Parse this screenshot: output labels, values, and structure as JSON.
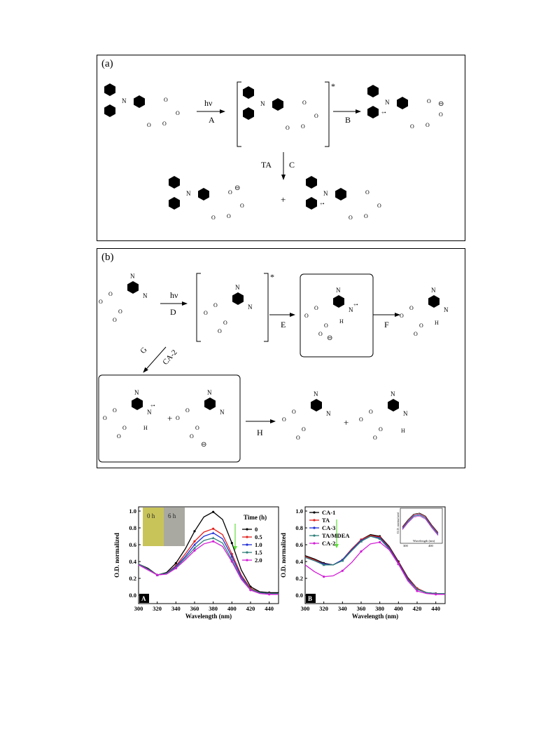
{
  "figure": {
    "panel_a": {
      "label": "(a)",
      "arrows": {
        "a_light": "hν",
        "a_step": "A",
        "b_step": "B",
        "c_reagent": "TA",
        "c_step": "C"
      },
      "excited_mark": "*",
      "plus": "+",
      "charges": {
        "radical_cation": "+•",
        "anion": "⊖",
        "radical": "•"
      }
    },
    "panel_b": {
      "label": "(b)",
      "arrows": {
        "d_light": "hν",
        "d_step": "D",
        "e_step": "E",
        "f_step": "F",
        "g_reagent": "CA-2",
        "g_step": "G",
        "h_step": "H"
      },
      "excited_mark": "*",
      "plus1": "+",
      "plus2": "+",
      "atoms": {
        "n": "N",
        "h": "H",
        "radical_cation": "+•",
        "anion": "⊖"
      }
    }
  },
  "chart_data": [
    {
      "type": "line",
      "panel": "A",
      "xlabel": "Wavelength (nm)",
      "ylabel": "O.D. normalized",
      "xlim": [
        300,
        450
      ],
      "ylim": [
        -0.1,
        1.05
      ],
      "xticks": [
        300,
        320,
        340,
        360,
        380,
        400,
        420,
        440
      ],
      "yticks": [
        0.0,
        0.2,
        0.4,
        0.6,
        0.8,
        1.0
      ],
      "legend_title": "Time (h)",
      "legend_position": "right",
      "inset": {
        "labels": [
          "0 h",
          "6 h"
        ],
        "left_color": "#c9c45a",
        "right_color": "#a9a9a2"
      },
      "x": [
        300,
        310,
        320,
        330,
        340,
        350,
        360,
        370,
        380,
        390,
        400,
        410,
        420,
        430,
        440,
        450
      ],
      "series": [
        {
          "name": "0",
          "color": "#000000",
          "values": [
            0.37,
            0.32,
            0.24,
            0.27,
            0.38,
            0.55,
            0.76,
            0.93,
            0.99,
            0.9,
            0.62,
            0.3,
            0.1,
            0.04,
            0.03,
            0.03
          ]
        },
        {
          "name": "0.5",
          "color": "#e0201c",
          "values": [
            0.37,
            0.31,
            0.24,
            0.26,
            0.35,
            0.49,
            0.64,
            0.75,
            0.79,
            0.72,
            0.49,
            0.24,
            0.08,
            0.03,
            0.02,
            0.02
          ]
        },
        {
          "name": "1.0",
          "color": "#1f2fd6",
          "values": [
            0.37,
            0.31,
            0.24,
            0.26,
            0.34,
            0.46,
            0.6,
            0.7,
            0.74,
            0.67,
            0.46,
            0.22,
            0.07,
            0.03,
            0.02,
            0.02
          ]
        },
        {
          "name": "1.5",
          "color": "#2f7f7a",
          "values": [
            0.37,
            0.31,
            0.24,
            0.26,
            0.33,
            0.44,
            0.56,
            0.65,
            0.68,
            0.62,
            0.42,
            0.2,
            0.07,
            0.03,
            0.02,
            0.02
          ]
        },
        {
          "name": "2.0",
          "color": "#d21fd6",
          "values": [
            0.36,
            0.3,
            0.24,
            0.25,
            0.32,
            0.42,
            0.53,
            0.61,
            0.64,
            0.58,
            0.4,
            0.19,
            0.06,
            0.02,
            0.01,
            0.01
          ]
        }
      ]
    },
    {
      "type": "line",
      "panel": "B",
      "xlabel": "Wavelength (nm)",
      "ylabel": "O.D. normalized",
      "xlim": [
        300,
        450
      ],
      "ylim": [
        -0.1,
        1.05
      ],
      "xticks": [
        300,
        320,
        340,
        360,
        380,
        400,
        420,
        440
      ],
      "yticks": [
        0.0,
        0.2,
        0.4,
        0.6,
        0.8,
        1.0
      ],
      "legend_position": "top-left",
      "inset": {
        "xlabel": "Wavelength (nm)",
        "ylabel": "O.D. normalized",
        "xticks": [
          300,
          400
        ]
      },
      "x": [
        300,
        310,
        320,
        330,
        340,
        350,
        360,
        370,
        380,
        390,
        400,
        410,
        420,
        430,
        440,
        450
      ],
      "series": [
        {
          "name": "CA-1",
          "color": "#000000",
          "values": [
            0.47,
            0.43,
            0.38,
            0.36,
            0.42,
            0.55,
            0.66,
            0.72,
            0.7,
            0.58,
            0.4,
            0.21,
            0.08,
            0.03,
            0.02,
            0.02
          ]
        },
        {
          "name": "TA",
          "color": "#e0201c",
          "values": [
            0.46,
            0.42,
            0.37,
            0.36,
            0.42,
            0.55,
            0.66,
            0.71,
            0.69,
            0.57,
            0.39,
            0.2,
            0.08,
            0.03,
            0.02,
            0.02
          ]
        },
        {
          "name": "CA-3",
          "color": "#1f2fd6",
          "values": [
            0.45,
            0.41,
            0.37,
            0.36,
            0.42,
            0.54,
            0.65,
            0.7,
            0.68,
            0.56,
            0.38,
            0.19,
            0.07,
            0.03,
            0.02,
            0.02
          ]
        },
        {
          "name": "TA/MDEA",
          "color": "#2f7f7a",
          "values": [
            0.45,
            0.41,
            0.36,
            0.36,
            0.41,
            0.53,
            0.64,
            0.7,
            0.67,
            0.55,
            0.37,
            0.18,
            0.07,
            0.03,
            0.02,
            0.02
          ]
        },
        {
          "name": "CA-2",
          "color": "#d21fd6",
          "values": [
            0.36,
            0.28,
            0.22,
            0.23,
            0.29,
            0.39,
            0.52,
            0.61,
            0.63,
            0.54,
            0.37,
            0.17,
            0.05,
            0.02,
            0.01,
            0.01
          ]
        }
      ]
    }
  ]
}
